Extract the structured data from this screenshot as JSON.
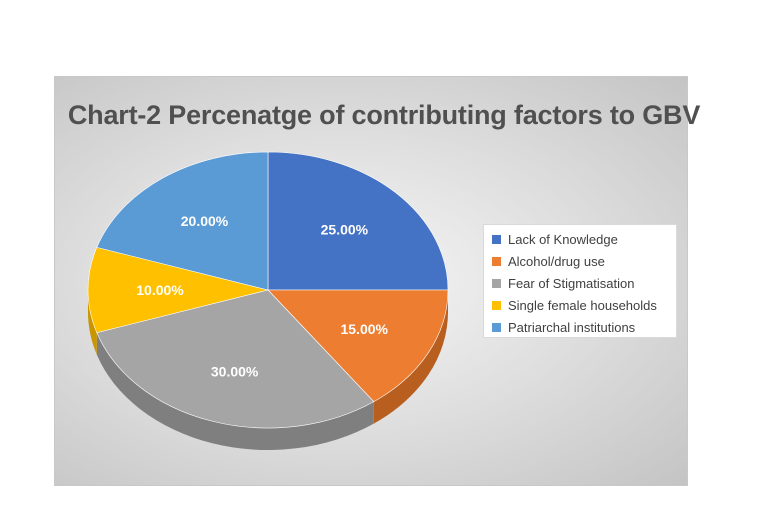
{
  "chart_data": {
    "type": "pie",
    "title": "Chart-2  Percenatge of contributing factors  to GBV",
    "categories": [
      "Lack of Knowledge",
      "Alcohol/drug use",
      "Fear of Stigmatisation",
      "Single female households",
      "Patriarchal institutions"
    ],
    "values": [
      25,
      15,
      30,
      10,
      20
    ],
    "data_labels": [
      "25.00%",
      "15.00%",
      "30.00%",
      "10.00%",
      "20.00%"
    ],
    "colors": [
      "#4472C4",
      "#ED7D31",
      "#A5A5A5",
      "#FFC000",
      "#5B9BD5"
    ],
    "side_colors": [
      "#2f5597",
      "#b85f20",
      "#7f7f7f",
      "#c99600",
      "#3f77aa"
    ],
    "legend_position": "right",
    "style": "3d"
  }
}
